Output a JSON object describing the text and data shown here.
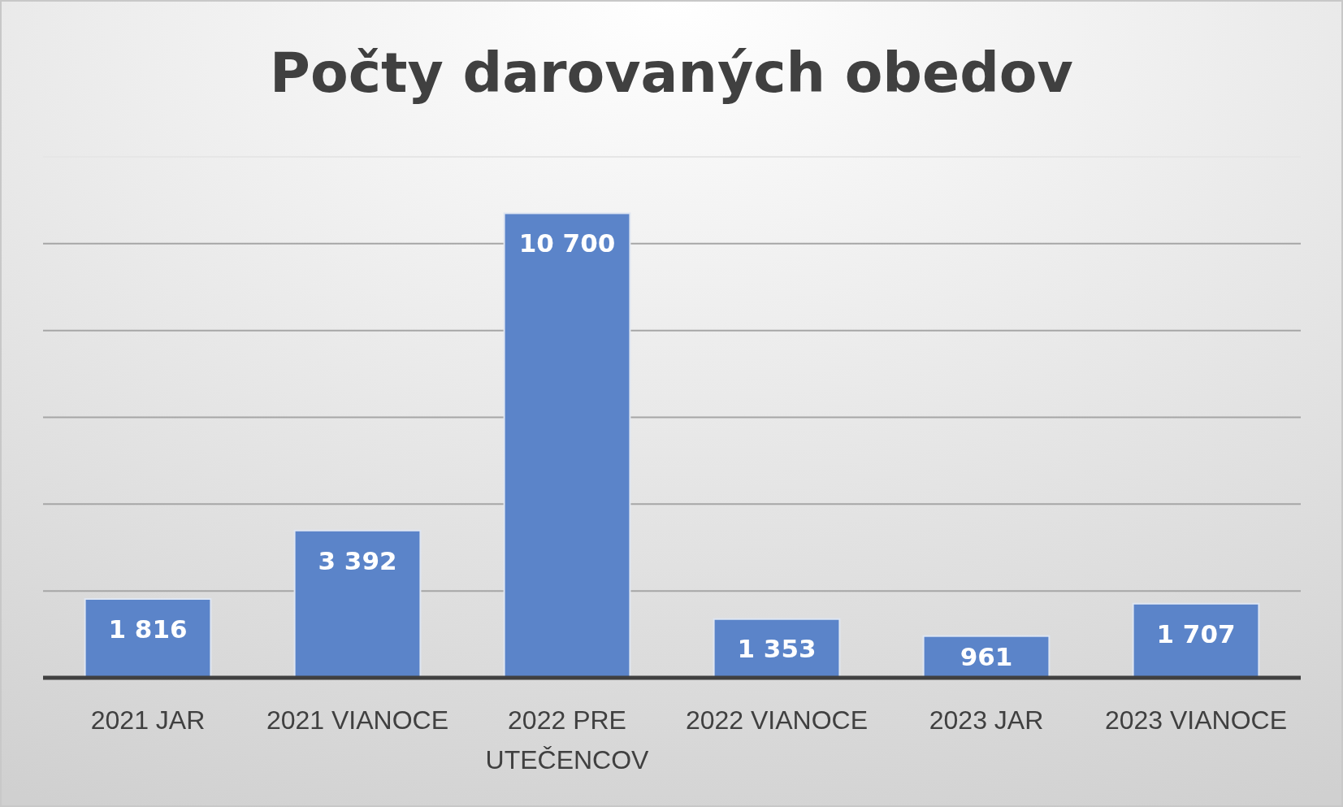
{
  "chart_data": {
    "type": "bar",
    "title": "Počty darovaných obedov",
    "categories": [
      "2021 JAR",
      "2021 VIANOCE",
      "2022 PRE UTEČENCOV",
      "2022 VIANOCE",
      "2023 JAR",
      "2023 VIANOCE"
    ],
    "values": [
      1816,
      3392,
      10700,
      1353,
      961,
      1707
    ],
    "value_labels": [
      "1 816",
      "3 392",
      "10 700",
      "1 353",
      "961",
      "1 707"
    ],
    "color": "#5b84c9",
    "ylim": [
      0,
      12000
    ],
    "yticks": [
      {
        "value": 0,
        "label": null
      },
      {
        "value": 2000,
        "label": null
      },
      {
        "value": 4000,
        "label": null
      },
      {
        "value": 6000,
        "label": null
      },
      {
        "value": 8000,
        "label": null
      },
      {
        "value": 10000,
        "label": null
      },
      {
        "value": 12000,
        "label": null
      }
    ],
    "grid": "y",
    "tick_labels": "x"
  }
}
